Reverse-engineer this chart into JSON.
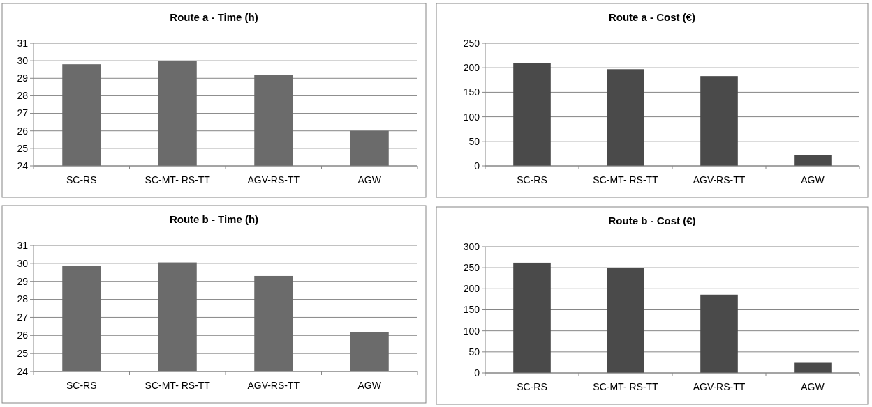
{
  "chart_data": [
    {
      "type": "bar",
      "title": "Route a - Time (h)",
      "categories": [
        "SC-RS",
        "SC-MT- RS-TT",
        "AGV-RS-TT",
        "AGW"
      ],
      "values": [
        29.8,
        30.0,
        29.2,
        26.0
      ],
      "color": "#6b6b6b",
      "ylim": [
        24,
        31
      ],
      "yticks": [
        24,
        25,
        26,
        27,
        28,
        29,
        30,
        31
      ],
      "grid": "y"
    },
    {
      "type": "bar",
      "title": "Route a - Cost (€)",
      "categories": [
        "SC-RS",
        "SC-MT- RS-TT",
        "AGV-RS-TT",
        "AGW"
      ],
      "values": [
        209,
        197,
        183,
        22
      ],
      "color": "#4a4a4a",
      "ylim": [
        0,
        250
      ],
      "yticks": [
        0,
        50,
        100,
        150,
        200,
        250
      ],
      "grid": "y"
    },
    {
      "type": "bar",
      "title": "Route b - Time (h)",
      "categories": [
        "SC-RS",
        "SC-MT- RS-TT",
        "AGV-RS-TT",
        "AGW"
      ],
      "values": [
        29.85,
        30.05,
        29.3,
        26.2
      ],
      "color": "#6b6b6b",
      "ylim": [
        24,
        31
      ],
      "yticks": [
        24,
        25,
        26,
        27,
        28,
        29,
        30,
        31
      ],
      "grid": "y"
    },
    {
      "type": "bar",
      "title": "Route b - Cost (€)",
      "categories": [
        "SC-RS",
        "SC-MT- RS-TT",
        "AGV-RS-TT",
        "AGW"
      ],
      "values": [
        262,
        250,
        186,
        24
      ],
      "color": "#4a4a4a",
      "ylim": [
        0,
        300
      ],
      "yticks": [
        0,
        50,
        100,
        150,
        200,
        250,
        300
      ],
      "grid": "y"
    }
  ]
}
